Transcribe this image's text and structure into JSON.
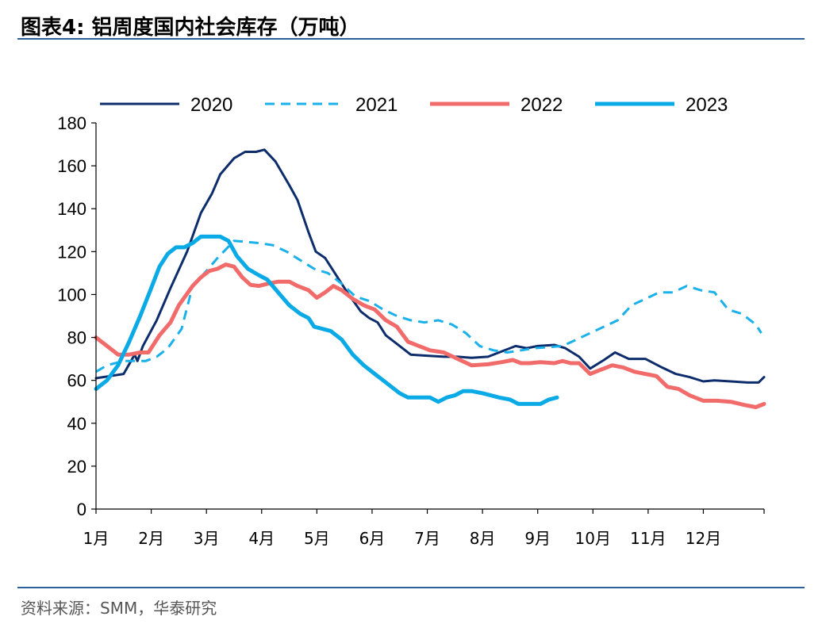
{
  "header": {
    "title": "图表4:  铝周度国内社会库存（万吨）"
  },
  "footer": {
    "source": "资料来源：SMM，华泰研究"
  },
  "chart_data": {
    "type": "line",
    "title": "铝周度国内社会库存（万吨）",
    "xlabel": "",
    "ylabel": "",
    "xlim": [
      1,
      13.1
    ],
    "ylim": [
      0,
      180
    ],
    "y_ticks": [
      0,
      20,
      40,
      60,
      80,
      100,
      120,
      140,
      160,
      180
    ],
    "x_ticks": [
      {
        "value": 1,
        "label": "1月"
      },
      {
        "value": 2,
        "label": "2月"
      },
      {
        "value": 3,
        "label": "3月"
      },
      {
        "value": 4,
        "label": "4月"
      },
      {
        "value": 5,
        "label": "5月"
      },
      {
        "value": 6,
        "label": "6月"
      },
      {
        "value": 7,
        "label": "7月"
      },
      {
        "value": 8,
        "label": "8月"
      },
      {
        "value": 9,
        "label": "9月"
      },
      {
        "value": 10,
        "label": "10月"
      },
      {
        "value": 11,
        "label": "11月"
      },
      {
        "value": 12,
        "label": "12月"
      }
    ],
    "grid": false,
    "legend": "top",
    "series": [
      {
        "name": "2020",
        "color": "#0d2c6b",
        "dash": false,
        "width": 3,
        "points": [
          [
            1.0,
            61
          ],
          [
            1.25,
            62
          ],
          [
            1.5,
            63
          ],
          [
            1.7,
            72
          ],
          [
            1.75,
            69
          ],
          [
            1.85,
            76
          ],
          [
            2.1,
            88
          ],
          [
            2.35,
            103
          ],
          [
            2.65,
            120
          ],
          [
            2.9,
            138
          ],
          [
            3.1,
            147
          ],
          [
            3.25,
            156
          ],
          [
            3.5,
            163.5
          ],
          [
            3.7,
            166.5
          ],
          [
            3.9,
            166.5
          ],
          [
            4.05,
            167.5
          ],
          [
            4.25,
            162
          ],
          [
            4.5,
            151
          ],
          [
            4.65,
            144
          ],
          [
            4.85,
            129
          ],
          [
            4.98,
            120
          ],
          [
            5.15,
            117
          ],
          [
            5.35,
            109
          ],
          [
            5.55,
            101
          ],
          [
            5.8,
            92
          ],
          [
            5.95,
            89
          ],
          [
            6.1,
            87
          ],
          [
            6.25,
            81
          ],
          [
            6.35,
            79
          ],
          [
            6.55,
            75
          ],
          [
            6.7,
            72
          ],
          [
            7.0,
            71.5
          ],
          [
            7.3,
            71
          ],
          [
            7.55,
            71
          ],
          [
            7.8,
            70.5
          ],
          [
            8.1,
            71
          ],
          [
            8.3,
            73
          ],
          [
            8.6,
            76
          ],
          [
            8.8,
            75
          ],
          [
            9.0,
            76
          ],
          [
            9.3,
            76.5
          ],
          [
            9.5,
            75
          ],
          [
            9.75,
            71
          ],
          [
            9.95,
            65.5
          ],
          [
            10.2,
            69.5
          ],
          [
            10.4,
            73
          ],
          [
            10.65,
            70
          ],
          [
            10.95,
            70
          ],
          [
            11.25,
            66
          ],
          [
            11.5,
            63
          ],
          [
            11.75,
            61.5
          ],
          [
            12.0,
            59.5
          ],
          [
            12.2,
            60
          ],
          [
            12.5,
            59.5
          ],
          [
            12.8,
            59
          ],
          [
            13.0,
            59
          ],
          [
            13.1,
            61.5
          ]
        ]
      },
      {
        "name": "2021",
        "color": "#1ab0ea",
        "dash": true,
        "width": 3,
        "points": [
          [
            1.0,
            64
          ],
          [
            1.2,
            67
          ],
          [
            1.5,
            69
          ],
          [
            1.7,
            69
          ],
          [
            1.9,
            69
          ],
          [
            2.1,
            71
          ],
          [
            2.3,
            75
          ],
          [
            2.55,
            84
          ],
          [
            2.75,
            104
          ],
          [
            3.0,
            111
          ],
          [
            3.2,
            117
          ],
          [
            3.5,
            125
          ],
          [
            3.75,
            124.5
          ],
          [
            3.95,
            124
          ],
          [
            4.2,
            123
          ],
          [
            4.45,
            120
          ],
          [
            4.7,
            116
          ],
          [
            4.95,
            112
          ],
          [
            5.2,
            110
          ],
          [
            5.45,
            105
          ],
          [
            5.7,
            99
          ],
          [
            5.95,
            97
          ],
          [
            6.2,
            93
          ],
          [
            6.45,
            90
          ],
          [
            6.7,
            88
          ],
          [
            6.95,
            87
          ],
          [
            7.2,
            88
          ],
          [
            7.45,
            86
          ],
          [
            7.7,
            82
          ],
          [
            7.95,
            76
          ],
          [
            8.2,
            74
          ],
          [
            8.45,
            73
          ],
          [
            8.7,
            74
          ],
          [
            8.95,
            75
          ],
          [
            9.2,
            75.5
          ],
          [
            9.45,
            76
          ],
          [
            9.7,
            79
          ],
          [
            9.95,
            82
          ],
          [
            10.2,
            85
          ],
          [
            10.45,
            88
          ],
          [
            10.7,
            95
          ],
          [
            10.95,
            98
          ],
          [
            11.2,
            101
          ],
          [
            11.45,
            101
          ],
          [
            11.7,
            104
          ],
          [
            11.95,
            102
          ],
          [
            12.2,
            101
          ],
          [
            12.45,
            93
          ],
          [
            12.7,
            91
          ],
          [
            12.95,
            86
          ],
          [
            13.05,
            82
          ]
        ]
      },
      {
        "name": "2022",
        "color": "#f26b6b",
        "dash": false,
        "width": 5,
        "points": [
          [
            1.0,
            80
          ],
          [
            1.2,
            76
          ],
          [
            1.4,
            72
          ],
          [
            1.6,
            72
          ],
          [
            1.8,
            73
          ],
          [
            1.95,
            73
          ],
          [
            2.15,
            81
          ],
          [
            2.35,
            87
          ],
          [
            2.5,
            95
          ],
          [
            2.75,
            104
          ],
          [
            2.9,
            108
          ],
          [
            3.05,
            111
          ],
          [
            3.2,
            112
          ],
          [
            3.35,
            114
          ],
          [
            3.5,
            113
          ],
          [
            3.65,
            108
          ],
          [
            3.8,
            104.5
          ],
          [
            3.95,
            104
          ],
          [
            4.1,
            105
          ],
          [
            4.3,
            106
          ],
          [
            4.5,
            106
          ],
          [
            4.65,
            104
          ],
          [
            4.85,
            102
          ],
          [
            5.0,
            98.5
          ],
          [
            5.15,
            101
          ],
          [
            5.3,
            104
          ],
          [
            5.45,
            102
          ],
          [
            5.65,
            98
          ],
          [
            5.85,
            95
          ],
          [
            6.05,
            93
          ],
          [
            6.25,
            88
          ],
          [
            6.45,
            85
          ],
          [
            6.65,
            78
          ],
          [
            6.85,
            76
          ],
          [
            7.05,
            74
          ],
          [
            7.3,
            73
          ],
          [
            7.55,
            70
          ],
          [
            7.8,
            67
          ],
          [
            8.1,
            67.5
          ],
          [
            8.35,
            68.5
          ],
          [
            8.55,
            69.5
          ],
          [
            8.7,
            68
          ],
          [
            8.85,
            68
          ],
          [
            9.05,
            68.5
          ],
          [
            9.3,
            68
          ],
          [
            9.45,
            69
          ],
          [
            9.6,
            68
          ],
          [
            9.75,
            68
          ],
          [
            9.95,
            63
          ],
          [
            10.15,
            65
          ],
          [
            10.35,
            67
          ],
          [
            10.55,
            66
          ],
          [
            10.75,
            64
          ],
          [
            10.95,
            63
          ],
          [
            11.15,
            62
          ],
          [
            11.35,
            57
          ],
          [
            11.55,
            56
          ],
          [
            11.75,
            53
          ],
          [
            12.0,
            50.5
          ],
          [
            12.25,
            50.5
          ],
          [
            12.5,
            50
          ],
          [
            12.75,
            48.5
          ],
          [
            12.95,
            47.5
          ],
          [
            13.1,
            49
          ]
        ]
      },
      {
        "name": "2023",
        "color": "#0aaae6",
        "dash": false,
        "width": 5,
        "points": [
          [
            1.0,
            56
          ],
          [
            1.2,
            60
          ],
          [
            1.4,
            67
          ],
          [
            1.6,
            78
          ],
          [
            1.8,
            90
          ],
          [
            2.0,
            103
          ],
          [
            2.15,
            113
          ],
          [
            2.3,
            119
          ],
          [
            2.45,
            122
          ],
          [
            2.6,
            122
          ],
          [
            2.75,
            124
          ],
          [
            2.9,
            127
          ],
          [
            3.05,
            127
          ],
          [
            3.25,
            127
          ],
          [
            3.4,
            125
          ],
          [
            3.55,
            118
          ],
          [
            3.75,
            112
          ],
          [
            3.95,
            109
          ],
          [
            4.1,
            107
          ],
          [
            4.3,
            101
          ],
          [
            4.5,
            95
          ],
          [
            4.7,
            91
          ],
          [
            4.85,
            89
          ],
          [
            4.95,
            85
          ],
          [
            5.1,
            84
          ],
          [
            5.25,
            83
          ],
          [
            5.45,
            79
          ],
          [
            5.65,
            72
          ],
          [
            5.85,
            67
          ],
          [
            6.05,
            63
          ],
          [
            6.2,
            60
          ],
          [
            6.35,
            57
          ],
          [
            6.5,
            54
          ],
          [
            6.65,
            52
          ],
          [
            6.85,
            52
          ],
          [
            7.05,
            52
          ],
          [
            7.2,
            50
          ],
          [
            7.35,
            52
          ],
          [
            7.5,
            53
          ],
          [
            7.65,
            55
          ],
          [
            7.8,
            55
          ],
          [
            8.0,
            54
          ],
          [
            8.15,
            53
          ],
          [
            8.3,
            52
          ],
          [
            8.5,
            51
          ],
          [
            8.65,
            49
          ],
          [
            8.85,
            49
          ],
          [
            9.05,
            49
          ],
          [
            9.2,
            51
          ],
          [
            9.35,
            52
          ]
        ]
      }
    ]
  }
}
